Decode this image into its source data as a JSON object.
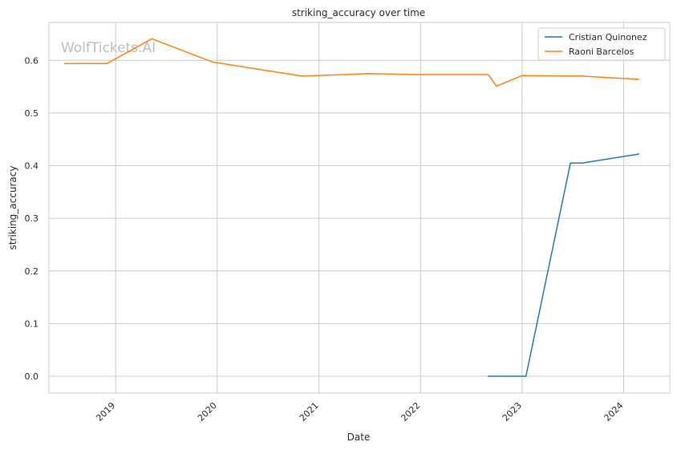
{
  "chart_data": {
    "type": "line",
    "title": "striking_accuracy over time",
    "xlabel": "Date",
    "ylabel": "striking_accuracy",
    "watermark": "WolfTickets.AI",
    "x_ticks": [
      "2019",
      "2020",
      "2021",
      "2022",
      "2023",
      "2024"
    ],
    "y_ticks": [
      "0.0",
      "0.1",
      "0.2",
      "0.3",
      "0.4",
      "0.5",
      "0.6"
    ],
    "ylim": [
      -0.032,
      0.672
    ],
    "xlim": [
      "2018-05-06",
      "2024-06-15"
    ],
    "grid": true,
    "legend_position": "top-right",
    "series": [
      {
        "name": "Cristian Quinonez",
        "color": "#1f77b4",
        "points": [
          {
            "x": "2022-09-01",
            "y": 0.0
          },
          {
            "x": "2023-01-15",
            "y": 0.0
          },
          {
            "x": "2023-06-24",
            "y": 0.405
          },
          {
            "x": "2023-08-05",
            "y": 0.405
          },
          {
            "x": "2024-02-24",
            "y": 0.422
          }
        ]
      },
      {
        "name": "Raoni Barcelos",
        "color": "#ff7f0e",
        "points": [
          {
            "x": "2018-07-01",
            "y": 0.594
          },
          {
            "x": "2018-12-01",
            "y": 0.594
          },
          {
            "x": "2019-05-11",
            "y": 0.641
          },
          {
            "x": "2019-12-14",
            "y": 0.597
          },
          {
            "x": "2020-11-01",
            "y": 0.57
          },
          {
            "x": "2021-07-01",
            "y": 0.575
          },
          {
            "x": "2022-01-01",
            "y": 0.573
          },
          {
            "x": "2022-09-01",
            "y": 0.573
          },
          {
            "x": "2022-10-01",
            "y": 0.551
          },
          {
            "x": "2023-01-01",
            "y": 0.571
          },
          {
            "x": "2023-08-05",
            "y": 0.57
          },
          {
            "x": "2024-02-24",
            "y": 0.564
          }
        ]
      }
    ]
  }
}
